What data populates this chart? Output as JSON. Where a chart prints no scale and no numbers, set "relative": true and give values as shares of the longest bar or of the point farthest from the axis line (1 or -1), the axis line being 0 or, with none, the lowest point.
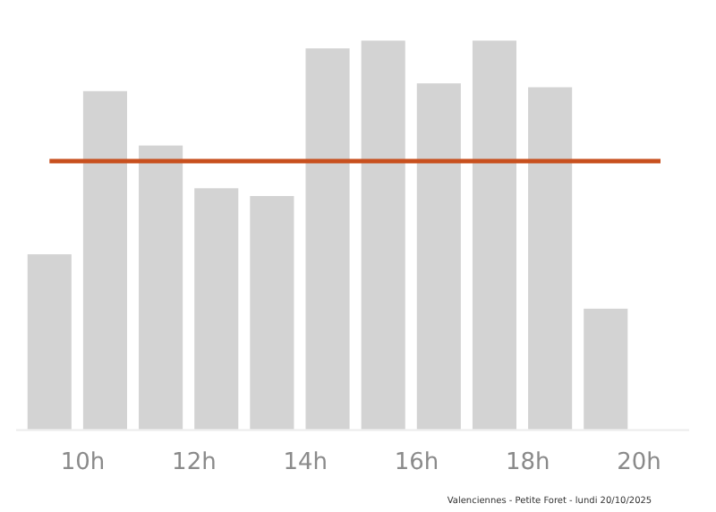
{
  "chart_data": {
    "type": "bar",
    "relative": true,
    "x": [
      9.4,
      10.4,
      11.4,
      12.4,
      13.4,
      14.4,
      15.4,
      16.4,
      17.4,
      18.4,
      19.4
    ],
    "values": [
      0.45,
      0.87,
      0.73,
      0.62,
      0.6,
      0.98,
      1,
      0.89,
      1,
      0.88,
      0.31
    ],
    "color": "#d3d3d3",
    "xlim": [
      8.8,
      20.9
    ],
    "xticks": [
      {
        "value": 10,
        "label": "10h"
      },
      {
        "value": 12,
        "label": "12h"
      },
      {
        "value": 14,
        "label": "14h"
      },
      {
        "value": 16,
        "label": "16h"
      },
      {
        "value": 18,
        "label": "18h"
      },
      {
        "value": 20,
        "label": "20h"
      }
    ],
    "ref_lines": [
      {
        "axis": "y",
        "value": 0.69,
        "color": "#c8501e"
      }
    ],
    "annotations": [
      "Valenciennes - Petite Foret - lundi 20/10/2025"
    ]
  }
}
